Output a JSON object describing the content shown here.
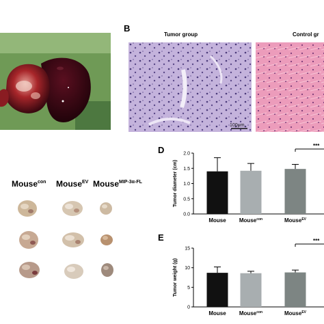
{
  "panel_labels": {
    "B": "B",
    "D": "D",
    "E": "E"
  },
  "histology": {
    "tumor_title": "Tumor group",
    "control_title": "Control gr",
    "scalebar": "100μm"
  },
  "mice": {
    "con": {
      "base": "Mouse",
      "sup": "con"
    },
    "ev": {
      "base": "Mouse",
      "sup": "EV"
    },
    "fl": {
      "base": "Mouse",
      "sup": "MIP-3α-FL"
    }
  },
  "colors": {
    "bar_black": "#111111",
    "bar_lightgray": "#a8aeb0",
    "bar_gray": "#7d8583",
    "he_tumor": "#b9a7d6",
    "he_control": "#e88fb0"
  },
  "chart_data": [
    {
      "type": "bar",
      "panel": "D",
      "ylabel": "Tumor diameter (cm)",
      "ylim": [
        0,
        2.0
      ],
      "yticks": [
        "0.0",
        "0.5",
        "1.0",
        "1.5",
        "2.0"
      ],
      "categories": [
        "Mouse",
        "Mouse",
        "Mouse"
      ],
      "category_sups": [
        "",
        "con",
        "EV"
      ],
      "values": [
        1.4,
        1.42,
        1.48
      ],
      "errors": [
        0.45,
        0.24,
        0.15
      ],
      "significance": "***"
    },
    {
      "type": "bar",
      "panel": "E",
      "ylabel": "Tumor weight (g)",
      "ylim": [
        0,
        15
      ],
      "yticks": [
        "0",
        "5",
        "10",
        "15"
      ],
      "categories": [
        "Mouse",
        "Mouse",
        "Mouse"
      ],
      "category_sups": [
        "",
        "con",
        "EV"
      ],
      "values": [
        8.7,
        8.6,
        8.8
      ],
      "errors": [
        1.5,
        0.5,
        0.6
      ],
      "significance": "***"
    }
  ]
}
